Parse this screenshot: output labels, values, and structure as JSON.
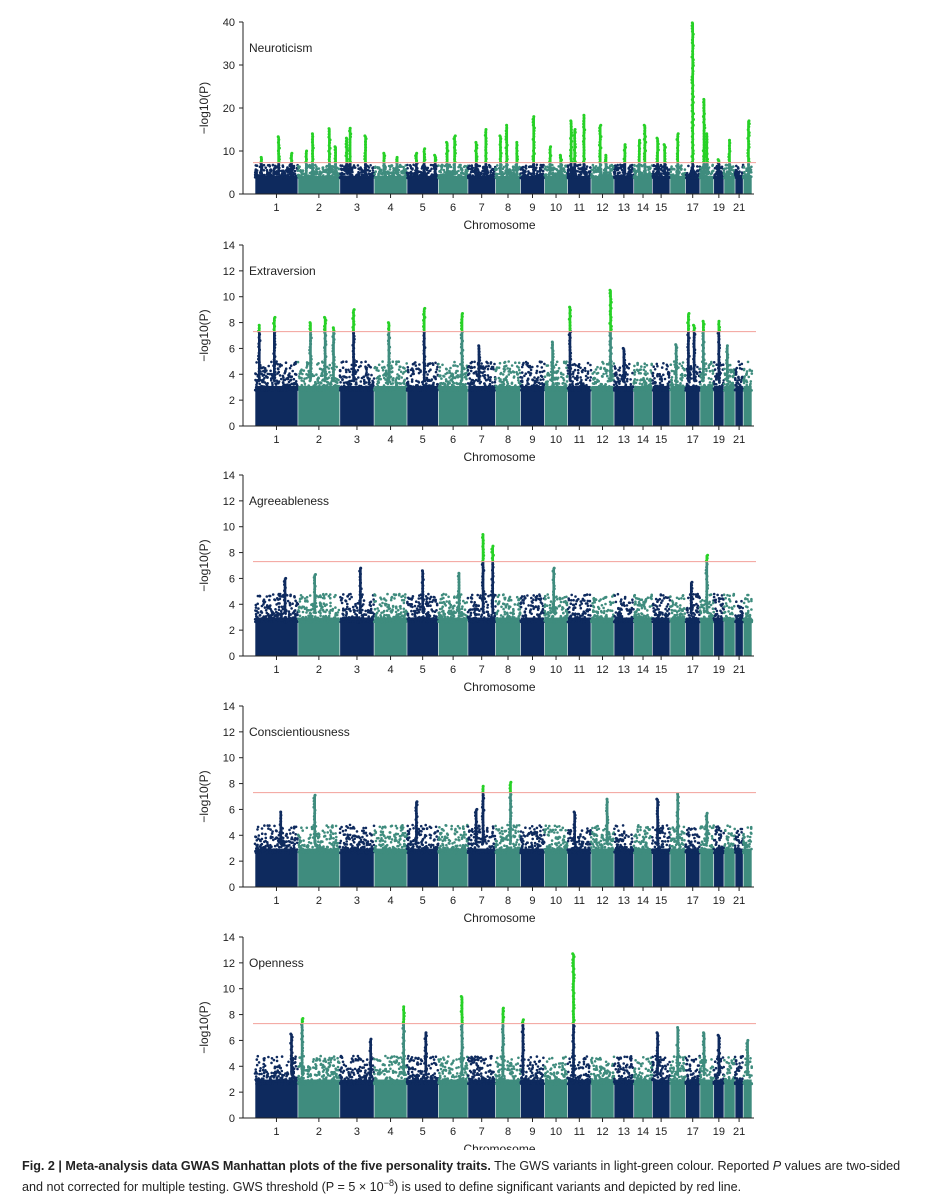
{
  "figure": {
    "caption": {
      "label": "Fig. 2 | Meta-analysis data GWAS Manhattan plots of the five personality traits.",
      "text_1": " The GWS variants in light-green colour. Reported ",
      "italic_p": "P",
      "text_2": " values are two-sided and not corrected for multiple testing. GWS threshold (",
      "threshold_expr": "P = 5 × 10",
      "threshold_exp": "−8",
      "text_3": ") is used to define significant variants and depicted by red line."
    }
  },
  "colors": {
    "dark_navy": "#0e2a5e",
    "teal": "#3f8c7e",
    "significant_green": "#27d126",
    "threshold_line": "#f2a09a",
    "axis": "#222222"
  },
  "chart_data": [
    {
      "type": "scatter",
      "title": "Neuroticism",
      "xlabel": "Chromosome",
      "ylabel": "−log10(P)",
      "ylim": [
        0,
        40
      ],
      "yticks": [
        0,
        10,
        20,
        30,
        40
      ],
      "threshold": 7.3,
      "x_tick_labels": [
        "1",
        "2",
        "3",
        "4",
        "5",
        "6",
        "7",
        "8",
        "9",
        "10",
        "11",
        "12",
        "13",
        "14",
        "15",
        "17",
        "19",
        "21"
      ],
      "background_max": 6.8,
      "peaks": [
        {
          "chr": 1,
          "pos": 0.15,
          "y": 8.5
        },
        {
          "chr": 1,
          "pos": 0.55,
          "y": 13.3
        },
        {
          "chr": 1,
          "pos": 0.85,
          "y": 9.5
        },
        {
          "chr": 2,
          "pos": 0.2,
          "y": 10
        },
        {
          "chr": 2,
          "pos": 0.35,
          "y": 14
        },
        {
          "chr": 2,
          "pos": 0.75,
          "y": 15.2
        },
        {
          "chr": 2,
          "pos": 0.9,
          "y": 11
        },
        {
          "chr": 3,
          "pos": 0.2,
          "y": 13
        },
        {
          "chr": 3,
          "pos": 0.3,
          "y": 15.3
        },
        {
          "chr": 3,
          "pos": 0.75,
          "y": 13.5
        },
        {
          "chr": 4,
          "pos": 0.3,
          "y": 9.5
        },
        {
          "chr": 4,
          "pos": 0.7,
          "y": 8.5
        },
        {
          "chr": 5,
          "pos": 0.3,
          "y": 9.5
        },
        {
          "chr": 5,
          "pos": 0.55,
          "y": 10.5
        },
        {
          "chr": 5,
          "pos": 0.9,
          "y": 9
        },
        {
          "chr": 6,
          "pos": 0.3,
          "y": 12
        },
        {
          "chr": 6,
          "pos": 0.55,
          "y": 13.5
        },
        {
          "chr": 7,
          "pos": 0.3,
          "y": 12
        },
        {
          "chr": 7,
          "pos": 0.65,
          "y": 15
        },
        {
          "chr": 8,
          "pos": 0.2,
          "y": 13.5
        },
        {
          "chr": 8,
          "pos": 0.45,
          "y": 16
        },
        {
          "chr": 8,
          "pos": 0.85,
          "y": 12
        },
        {
          "chr": 9,
          "pos": 0.55,
          "y": 18
        },
        {
          "chr": 10,
          "pos": 0.25,
          "y": 11
        },
        {
          "chr": 10,
          "pos": 0.7,
          "y": 9
        },
        {
          "chr": 11,
          "pos": 0.15,
          "y": 17
        },
        {
          "chr": 11,
          "pos": 0.3,
          "y": 15
        },
        {
          "chr": 11,
          "pos": 0.7,
          "y": 18.3
        },
        {
          "chr": 12,
          "pos": 0.4,
          "y": 16
        },
        {
          "chr": 12,
          "pos": 0.65,
          "y": 9
        },
        {
          "chr": 13,
          "pos": 0.55,
          "y": 11.5
        },
        {
          "chr": 14,
          "pos": 0.3,
          "y": 12.5
        },
        {
          "chr": 14,
          "pos": 0.6,
          "y": 16
        },
        {
          "chr": 15,
          "pos": 0.3,
          "y": 13
        },
        {
          "chr": 15,
          "pos": 0.7,
          "y": 11.5
        },
        {
          "chr": 16,
          "pos": 0.5,
          "y": 14
        },
        {
          "chr": 17,
          "pos": 0.5,
          "y": 39.8
        },
        {
          "chr": 18,
          "pos": 0.3,
          "y": 22
        },
        {
          "chr": 18,
          "pos": 0.5,
          "y": 14
        },
        {
          "chr": 19,
          "pos": 0.5,
          "y": 8
        },
        {
          "chr": 20,
          "pos": 0.5,
          "y": 12.5
        },
        {
          "chr": 22,
          "pos": 0.6,
          "y": 17
        }
      ]
    },
    {
      "type": "scatter",
      "title": "Extraversion",
      "xlabel": "Chromosome",
      "ylabel": "−log10(P)",
      "ylim": [
        0,
        14
      ],
      "yticks": [
        0,
        2,
        4,
        6,
        8,
        10,
        12,
        14
      ],
      "threshold": 7.3,
      "x_tick_labels": [
        "1",
        "2",
        "3",
        "4",
        "5",
        "6",
        "7",
        "8",
        "9",
        "10",
        "11",
        "12",
        "13",
        "14",
        "15",
        "17",
        "19",
        "21"
      ],
      "background_max": 5.0,
      "peaks": [
        {
          "chr": 1,
          "pos": 0.1,
          "y": 7.8
        },
        {
          "chr": 1,
          "pos": 0.45,
          "y": 8.4
        },
        {
          "chr": 2,
          "pos": 0.3,
          "y": 8.0
        },
        {
          "chr": 2,
          "pos": 0.65,
          "y": 8.4
        },
        {
          "chr": 2,
          "pos": 0.85,
          "y": 7.6
        },
        {
          "chr": 3,
          "pos": 0.4,
          "y": 9.0
        },
        {
          "chr": 4,
          "pos": 0.45,
          "y": 8.0
        },
        {
          "chr": 5,
          "pos": 0.55,
          "y": 9.1
        },
        {
          "chr": 6,
          "pos": 0.8,
          "y": 8.7
        },
        {
          "chr": 7,
          "pos": 0.4,
          "y": 6.2
        },
        {
          "chr": 10,
          "pos": 0.35,
          "y": 6.5
        },
        {
          "chr": 11,
          "pos": 0.1,
          "y": 9.2
        },
        {
          "chr": 12,
          "pos": 0.85,
          "y": 10.5
        },
        {
          "chr": 13,
          "pos": 0.5,
          "y": 6.0
        },
        {
          "chr": 16,
          "pos": 0.4,
          "y": 6.3
        },
        {
          "chr": 17,
          "pos": 0.2,
          "y": 8.7
        },
        {
          "chr": 17,
          "pos": 0.6,
          "y": 7.8
        },
        {
          "chr": 18,
          "pos": 0.25,
          "y": 8.1
        },
        {
          "chr": 19,
          "pos": 0.5,
          "y": 8.1
        },
        {
          "chr": 20,
          "pos": 0.3,
          "y": 6.2
        }
      ]
    },
    {
      "type": "scatter",
      "title": "Agreeableness",
      "xlabel": "Chromosome",
      "ylabel": "−log10(P)",
      "ylim": [
        0,
        14
      ],
      "yticks": [
        0,
        2,
        4,
        6,
        8,
        10,
        12,
        14
      ],
      "threshold": 7.3,
      "x_tick_labels": [
        "1",
        "2",
        "3",
        "4",
        "5",
        "6",
        "7",
        "8",
        "9",
        "10",
        "11",
        "12",
        "13",
        "14",
        "15",
        "17",
        "19",
        "21"
      ],
      "background_max": 4.8,
      "peaks": [
        {
          "chr": 1,
          "pos": 0.7,
          "y": 6.0
        },
        {
          "chr": 2,
          "pos": 0.4,
          "y": 6.3
        },
        {
          "chr": 3,
          "pos": 0.6,
          "y": 6.8
        },
        {
          "chr": 5,
          "pos": 0.5,
          "y": 6.6
        },
        {
          "chr": 6,
          "pos": 0.7,
          "y": 6.4
        },
        {
          "chr": 7,
          "pos": 0.55,
          "y": 9.4
        },
        {
          "chr": 7,
          "pos": 0.9,
          "y": 8.5
        },
        {
          "chr": 10,
          "pos": 0.4,
          "y": 6.8
        },
        {
          "chr": 17,
          "pos": 0.4,
          "y": 5.7
        },
        {
          "chr": 18,
          "pos": 0.5,
          "y": 7.8
        }
      ]
    },
    {
      "type": "scatter",
      "title": "Conscientiousness",
      "xlabel": "Chromosome",
      "ylabel": "−log10(P)",
      "ylim": [
        0,
        14
      ],
      "yticks": [
        0,
        2,
        4,
        6,
        8,
        10,
        12,
        14
      ],
      "threshold": 7.3,
      "x_tick_labels": [
        "1",
        "2",
        "3",
        "4",
        "5",
        "6",
        "7",
        "8",
        "9",
        "10",
        "11",
        "12",
        "13",
        "14",
        "15",
        "17",
        "19",
        "21"
      ],
      "background_max": 4.8,
      "peaks": [
        {
          "chr": 1,
          "pos": 0.6,
          "y": 5.8
        },
        {
          "chr": 2,
          "pos": 0.4,
          "y": 7.1
        },
        {
          "chr": 5,
          "pos": 0.3,
          "y": 6.6
        },
        {
          "chr": 7,
          "pos": 0.55,
          "y": 7.8
        },
        {
          "chr": 7,
          "pos": 0.3,
          "y": 6.0
        },
        {
          "chr": 8,
          "pos": 0.6,
          "y": 8.1
        },
        {
          "chr": 11,
          "pos": 0.3,
          "y": 5.8
        },
        {
          "chr": 12,
          "pos": 0.7,
          "y": 6.8
        },
        {
          "chr": 15,
          "pos": 0.3,
          "y": 6.8
        },
        {
          "chr": 16,
          "pos": 0.5,
          "y": 7.2
        },
        {
          "chr": 18,
          "pos": 0.5,
          "y": 5.7
        }
      ]
    },
    {
      "type": "scatter",
      "title": "Openness",
      "xlabel": "Chromosome",
      "ylabel": "−log10(P)",
      "ylim": [
        0,
        14
      ],
      "yticks": [
        0,
        2,
        4,
        6,
        8,
        10,
        12,
        14
      ],
      "threshold": 7.3,
      "x_tick_labels": [
        "1",
        "2",
        "3",
        "4",
        "5",
        "6",
        "7",
        "8",
        "9",
        "10",
        "11",
        "12",
        "13",
        "14",
        "15",
        "17",
        "19",
        "21"
      ],
      "background_max": 4.8,
      "peaks": [
        {
          "chr": 1,
          "pos": 0.85,
          "y": 6.5
        },
        {
          "chr": 2,
          "pos": 0.1,
          "y": 7.7
        },
        {
          "chr": 3,
          "pos": 0.9,
          "y": 6.1
        },
        {
          "chr": 4,
          "pos": 0.9,
          "y": 8.6
        },
        {
          "chr": 5,
          "pos": 0.6,
          "y": 6.6
        },
        {
          "chr": 6,
          "pos": 0.8,
          "y": 9.4
        },
        {
          "chr": 8,
          "pos": 0.3,
          "y": 8.5
        },
        {
          "chr": 9,
          "pos": 0.1,
          "y": 7.6
        },
        {
          "chr": 11,
          "pos": 0.25,
          "y": 12.7
        },
        {
          "chr": 15,
          "pos": 0.3,
          "y": 6.6
        },
        {
          "chr": 16,
          "pos": 0.5,
          "y": 7.0
        },
        {
          "chr": 18,
          "pos": 0.3,
          "y": 6.6
        },
        {
          "chr": 19,
          "pos": 0.5,
          "y": 6.4
        },
        {
          "chr": 22,
          "pos": 0.5,
          "y": 6.0
        }
      ]
    }
  ]
}
